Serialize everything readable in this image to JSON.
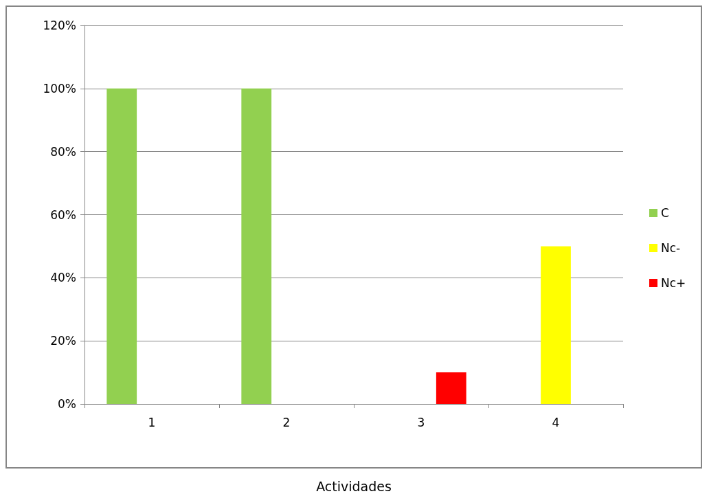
{
  "chart_data": {
    "type": "bar",
    "xlabel": "Actividades",
    "categories": [
      "1",
      "2",
      "3",
      "4"
    ],
    "series": [
      {
        "name": "C",
        "color": "#92d050",
        "values": [
          100,
          100,
          0,
          0
        ]
      },
      {
        "name": "Nc-",
        "color": "#ffff00",
        "values": [
          0,
          0,
          0,
          50
        ]
      },
      {
        "name": "Nc+",
        "color": "#ff0000",
        "values": [
          0,
          0,
          10,
          0
        ]
      }
    ],
    "ylim": [
      0,
      120
    ],
    "yticks": [
      {
        "value": 0,
        "label": "0%"
      },
      {
        "value": 20,
        "label": "20%"
      },
      {
        "value": 40,
        "label": "40%"
      },
      {
        "value": 60,
        "label": "60%"
      },
      {
        "value": 80,
        "label": "80%"
      },
      {
        "value": 100,
        "label": "100%"
      },
      {
        "value": 120,
        "label": "120%"
      }
    ],
    "grid": "y",
    "legend": "right"
  }
}
